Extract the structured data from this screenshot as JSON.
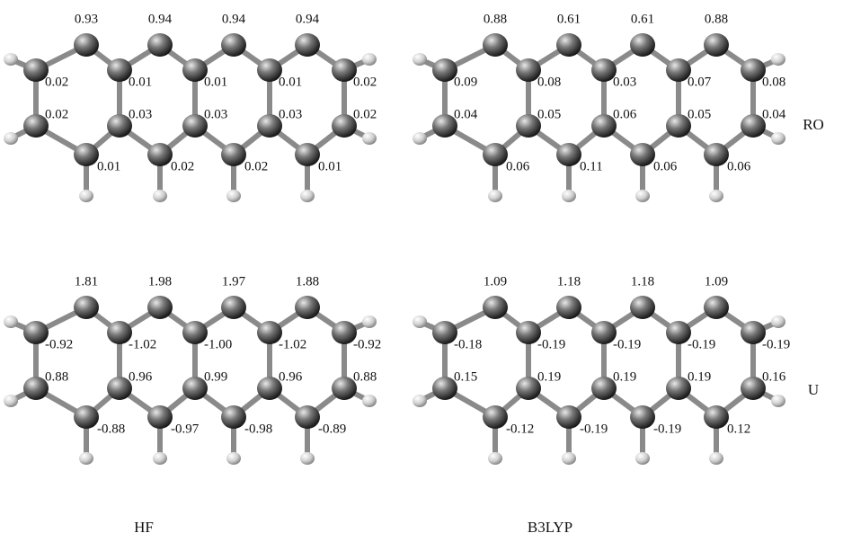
{
  "panels": [
    {
      "top": [
        "0.93",
        "0.94",
        "0.94",
        "0.94"
      ],
      "upper": [
        "0.02",
        "0.01",
        "0.01",
        "0.01",
        "0.02"
      ],
      "lower": [
        "0.02",
        "0.03",
        "0.03",
        "0.03",
        "0.02"
      ],
      "bottom": [
        "0.01",
        "0.02",
        "0.02",
        "0.01"
      ]
    },
    {
      "top": [
        "0.88",
        "0.61",
        "0.61",
        "0.88"
      ],
      "upper": [
        "0.09",
        "0.08",
        "0.03",
        "0.07",
        "0.08"
      ],
      "lower": [
        "0.04",
        "0.05",
        "0.06",
        "0.05",
        "0.04"
      ],
      "bottom": [
        "0.06",
        "0.11",
        "0.06",
        "0.06"
      ]
    },
    {
      "top": [
        "1.81",
        "1.98",
        "1.97",
        "1.88"
      ],
      "upper": [
        "-0.92",
        "-1.02",
        "-1.00",
        "-1.02",
        "-0.92"
      ],
      "lower": [
        "0.88",
        "0.96",
        "0.99",
        "0.96",
        "0.88"
      ],
      "bottom": [
        "-0.88",
        "-0.97",
        "-0.98",
        "-0.89"
      ]
    },
    {
      "top": [
        "1.09",
        "1.18",
        "1.18",
        "1.09"
      ],
      "upper": [
        "-0.18",
        "-0.19",
        "-0.19",
        "-0.19",
        "-0.19"
      ],
      "lower": [
        "0.15",
        "0.19",
        "0.19",
        "0.19",
        "0.16"
      ],
      "bottom": [
        "-0.12",
        "-0.19",
        "-0.19",
        "0.12"
      ]
    }
  ],
  "row_labels": [
    "RO",
    "U"
  ],
  "column_labels": [
    "HF",
    "B3LYP"
  ]
}
